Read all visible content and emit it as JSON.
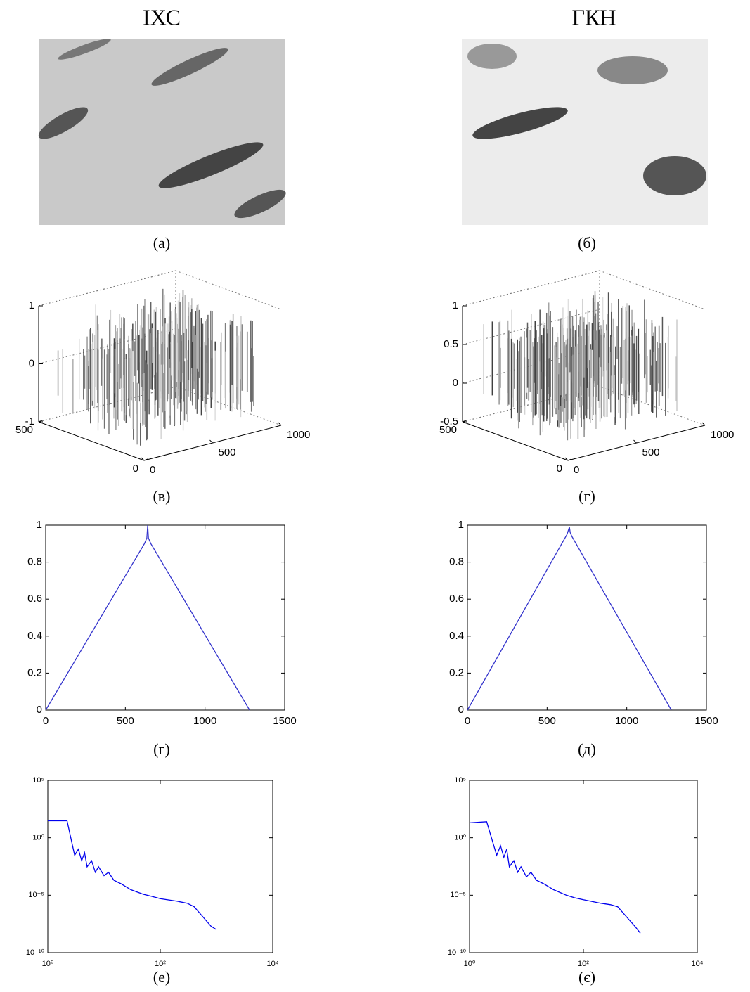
{
  "headers": [
    "ІХС",
    "ГКН"
  ],
  "captions": [
    "(а)",
    "(б)",
    "(в)",
    "(г)",
    "(г)",
    "(д)",
    "(е)",
    "(є)"
  ],
  "chart_data": [
    {
      "type": "surface",
      "xlim": [
        0,
        1000
      ],
      "ylim": [
        0,
        500
      ],
      "zlim": [
        -1,
        1
      ],
      "xticks": [
        0,
        500,
        1000
      ],
      "yticks": [
        0,
        500
      ],
      "zticks": [
        -1,
        0,
        1
      ]
    },
    {
      "type": "surface",
      "xlim": [
        0,
        1000
      ],
      "ylim": [
        0,
        500
      ],
      "zlim": [
        -0.5,
        1
      ],
      "xticks": [
        0,
        500,
        1000
      ],
      "yticks": [
        0,
        500
      ],
      "zticks": [
        -0.5,
        0,
        0.5,
        1
      ]
    },
    {
      "type": "line",
      "color": "#3333cc",
      "x": [
        0,
        620,
        635,
        640,
        645,
        660,
        1280
      ],
      "values": [
        0,
        0.9,
        0.93,
        1,
        0.93,
        0.9,
        0
      ],
      "xlim": [
        0,
        1500
      ],
      "ylim": [
        0,
        1
      ],
      "xticks": [
        0,
        500,
        1000,
        1500
      ],
      "yticks": [
        0,
        0.2,
        0.4,
        0.6,
        0.8,
        1
      ]
    },
    {
      "type": "line",
      "color": "#3333cc",
      "x": [
        0,
        625,
        640,
        645,
        655,
        1280
      ],
      "values": [
        0,
        0.95,
        0.99,
        0.96,
        0.94,
        0
      ],
      "xlim": [
        0,
        1500
      ],
      "ylim": [
        0,
        1
      ],
      "xticks": [
        0,
        500,
        1000,
        1500
      ],
      "yticks": [
        0,
        0.2,
        0.4,
        0.6,
        0.8,
        1
      ]
    },
    {
      "type": "line",
      "scale": "log",
      "color": "#0000ee",
      "x": [
        1,
        2.2,
        3,
        3.5,
        4,
        4.5,
        5,
        6,
        7,
        8,
        10,
        12,
        15,
        20,
        30,
        50,
        70,
        100,
        200,
        300,
        400,
        600,
        800,
        1000
      ],
      "values": [
        30,
        30,
        0.03,
        0.1,
        0.01,
        0.05,
        0.003,
        0.01,
        0.001,
        0.003,
        0.0005,
        0.001,
        0.0002,
        0.0001,
        3e-05,
        1.2e-05,
        8e-06,
        5e-06,
        3e-06,
        2e-06,
        1e-06,
        1e-07,
        2e-08,
        1e-08
      ],
      "xlim": [
        1,
        10000
      ],
      "ylim": [
        1e-10,
        100000
      ],
      "xticks": [
        {
          "value": 1,
          "label": "10⁰"
        },
        {
          "value": 100,
          "label": "10²"
        },
        {
          "value": 10000,
          "label": "10⁴"
        }
      ],
      "yticks": [
        {
          "value": 1e-10,
          "label": "10⁻¹⁰"
        },
        {
          "value": 1e-05,
          "label": "10⁻⁵"
        },
        {
          "value": 1,
          "label": "10⁰"
        },
        {
          "value": 100000,
          "label": "10⁵"
        }
      ]
    },
    {
      "type": "line",
      "scale": "log",
      "color": "#0000ee",
      "x": [
        1,
        2,
        3,
        3.5,
        4,
        4.5,
        5,
        6,
        7,
        8,
        10,
        12,
        15,
        20,
        30,
        50,
        70,
        100,
        200,
        300,
        400,
        600,
        800,
        1000
      ],
      "values": [
        20,
        25,
        0.03,
        0.2,
        0.02,
        0.1,
        0.003,
        0.01,
        0.001,
        0.003,
        0.0004,
        0.001,
        0.0002,
        0.0001,
        3e-05,
        1e-05,
        6e-06,
        4e-06,
        2e-06,
        1.5e-06,
        1e-06,
        1e-07,
        2e-08,
        5e-09
      ],
      "xlim": [
        1,
        10000
      ],
      "ylim": [
        1e-10,
        100000
      ],
      "xticks": [
        {
          "value": 1,
          "label": "10⁰"
        },
        {
          "value": 100,
          "label": "10²"
        },
        {
          "value": 10000,
          "label": "10⁴"
        }
      ],
      "yticks": [
        {
          "value": 1e-10,
          "label": "10⁻¹⁰"
        },
        {
          "value": 1e-05,
          "label": "10⁻⁵"
        },
        {
          "value": 1,
          "label": "10⁰"
        },
        {
          "value": 100000,
          "label": "10⁵"
        }
      ]
    }
  ]
}
